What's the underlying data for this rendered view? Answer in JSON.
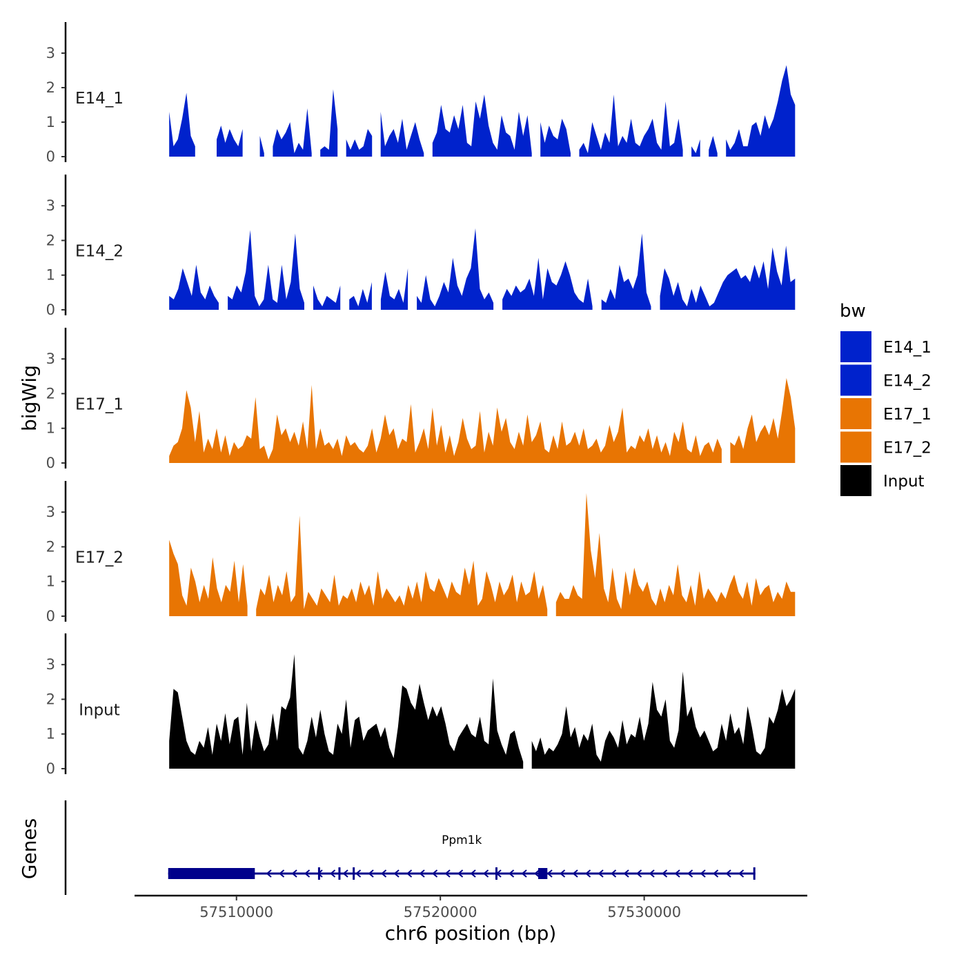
{
  "chart_data": {
    "type": "area",
    "title": "",
    "chromosome": "chr6",
    "xlabel": "chr6 position (bp)",
    "ylabel": "bigWig",
    "genes_panel_label": "Genes",
    "xlim": [
      57505000,
      57538000
    ],
    "x_ticks": [
      57510000,
      57520000,
      57530000
    ],
    "x_tick_labels": [
      "57510000",
      "57520000",
      "57530000"
    ],
    "ylim": [
      0,
      3.8
    ],
    "y_ticks": [
      0,
      1,
      2,
      3
    ],
    "y_tick_labels": [
      "0",
      "1",
      "2",
      "3"
    ],
    "x_start": 57506700,
    "x_end": 57537400,
    "legend": {
      "title": "bw",
      "placement": "right",
      "entries": [
        {
          "label": "E14_1",
          "color": "#0022cc"
        },
        {
          "label": "E14_2",
          "color": "#0022cc"
        },
        {
          "label": "E17_1",
          "color": "#e87503"
        },
        {
          "label": "E17_2",
          "color": "#e87503"
        },
        {
          "label": "Input",
          "color": "#000000"
        }
      ]
    },
    "series": [
      {
        "name": "E14_1",
        "color": "#0022cc",
        "values": [
          1.3,
          0.3,
          0.5,
          1.1,
          1.85,
          0.6,
          0.3,
          null,
          0.15,
          null,
          null,
          0.5,
          0.9,
          0.4,
          0.8,
          0.5,
          0.3,
          0.8,
          null,
          null,
          null,
          0.6,
          0.1,
          null,
          0.3,
          0.8,
          0.5,
          0.7,
          1.0,
          0.1,
          0.4,
          0.2,
          1.4,
          0.1,
          null,
          0.2,
          0.3,
          0.2,
          1.95,
          0.8,
          null,
          0.5,
          0.2,
          0.5,
          0.2,
          0.3,
          0.8,
          0.6,
          null,
          1.3,
          0.3,
          0.6,
          0.8,
          0.4,
          1.1,
          0.2,
          0.6,
          1.0,
          0.5,
          0.1,
          null,
          0.4,
          0.7,
          1.5,
          0.8,
          0.7,
          1.2,
          0.8,
          1.5,
          0.4,
          0.3,
          1.6,
          1.1,
          1.8,
          0.9,
          0.4,
          0.2,
          1.2,
          0.7,
          0.6,
          0.2,
          1.3,
          0.6,
          1.2,
          0.1,
          null,
          1.0,
          0.4,
          0.9,
          0.6,
          0.5,
          1.1,
          0.8,
          0.1,
          null,
          0.2,
          0.4,
          0.1,
          1.0,
          0.6,
          0.2,
          0.7,
          0.4,
          1.8,
          0.3,
          0.6,
          0.4,
          1.1,
          0.4,
          0.3,
          0.6,
          0.8,
          1.1,
          0.4,
          0.2,
          1.6,
          0.3,
          0.4,
          1.1,
          0.2,
          null,
          0.3,
          0.1,
          0.5,
          null,
          0.2,
          0.6,
          0.1,
          null,
          0.5,
          0.2,
          0.4,
          0.8,
          0.3,
          0.3,
          0.9,
          1.0,
          0.6,
          1.2,
          0.8,
          1.1,
          1.6,
          2.2,
          2.65,
          1.8,
          1.5
        ]
      },
      {
        "name": "E14_2",
        "color": "#0022cc",
        "values": [
          0.4,
          0.3,
          0.6,
          1.2,
          0.8,
          0.4,
          1.3,
          0.5,
          0.3,
          0.7,
          0.4,
          0.2,
          null,
          0.4,
          0.3,
          0.7,
          0.5,
          1.1,
          2.3,
          0.4,
          0.1,
          0.3,
          1.3,
          0.3,
          0.2,
          1.3,
          0.3,
          0.8,
          2.2,
          0.6,
          0.2,
          null,
          0.7,
          0.3,
          0.1,
          0.4,
          0.3,
          0.2,
          0.7,
          null,
          0.3,
          0.4,
          0.1,
          0.6,
          0.2,
          0.8,
          null,
          0.3,
          1.1,
          0.4,
          0.3,
          0.6,
          0.2,
          1.2,
          null,
          0.4,
          0.2,
          1.0,
          0.3,
          0.1,
          0.4,
          0.8,
          0.5,
          1.5,
          0.7,
          0.4,
          0.9,
          1.2,
          2.35,
          0.6,
          0.3,
          0.5,
          0.2,
          null,
          0.3,
          0.6,
          0.4,
          0.7,
          0.5,
          0.6,
          0.9,
          0.4,
          1.5,
          0.3,
          1.2,
          0.8,
          0.7,
          1.0,
          1.4,
          1.0,
          0.5,
          0.3,
          0.2,
          0.9,
          0.1,
          null,
          0.3,
          0.2,
          0.6,
          0.3,
          1.3,
          0.8,
          0.9,
          0.6,
          1.0,
          2.2,
          0.5,
          0.1,
          null,
          0.4,
          1.2,
          0.9,
          0.4,
          0.8,
          0.3,
          0.1,
          0.6,
          0.2,
          0.7,
          0.4,
          0.1,
          0.2,
          0.5,
          0.8,
          1.0,
          1.1,
          1.2,
          0.9,
          1.0,
          0.8,
          1.3,
          0.9,
          1.4,
          0.6,
          1.8,
          1.1,
          0.7,
          1.85,
          0.8,
          0.9
        ]
      },
      {
        "name": "E17_1",
        "color": "#e87503",
        "values": [
          0.2,
          0.5,
          0.6,
          1.0,
          2.1,
          1.6,
          0.6,
          1.5,
          0.3,
          0.7,
          0.4,
          1.0,
          0.3,
          0.8,
          0.2,
          0.6,
          0.4,
          0.5,
          0.8,
          0.7,
          1.9,
          0.4,
          0.5,
          0.1,
          0.4,
          1.4,
          0.8,
          1.0,
          0.6,
          0.9,
          0.5,
          1.2,
          0.4,
          2.25,
          0.4,
          1.0,
          0.5,
          0.6,
          0.4,
          0.7,
          0.2,
          0.8,
          0.5,
          0.6,
          0.4,
          0.3,
          0.5,
          1.0,
          0.3,
          0.7,
          1.4,
          0.8,
          1.0,
          0.4,
          0.7,
          0.6,
          1.7,
          0.3,
          0.6,
          1.0,
          0.4,
          1.6,
          0.5,
          1.1,
          0.3,
          0.8,
          0.2,
          0.6,
          1.3,
          0.7,
          0.4,
          0.5,
          1.5,
          0.3,
          0.9,
          0.5,
          1.6,
          0.9,
          1.3,
          0.6,
          0.4,
          0.9,
          0.5,
          1.4,
          0.6,
          0.8,
          1.2,
          0.4,
          0.3,
          0.8,
          0.4,
          1.2,
          0.5,
          0.6,
          0.9,
          0.5,
          1.0,
          0.4,
          0.5,
          0.7,
          0.3,
          0.5,
          1.1,
          0.6,
          0.9,
          1.6,
          0.3,
          0.5,
          0.4,
          0.8,
          0.6,
          1.0,
          0.4,
          0.8,
          0.3,
          0.6,
          0.2,
          0.9,
          0.6,
          1.2,
          0.4,
          0.3,
          0.8,
          0.2,
          0.5,
          0.6,
          0.3,
          0.7,
          0.4,
          null,
          0.6,
          0.5,
          0.8,
          0.4,
          1.0,
          1.4,
          0.6,
          0.9,
          1.1,
          0.8,
          1.3,
          0.7,
          1.5,
          2.45,
          1.9,
          1.0
        ]
      },
      {
        "name": "E17_2",
        "color": "#e87503",
        "values": [
          2.2,
          1.8,
          1.5,
          0.6,
          0.3,
          1.4,
          1.0,
          0.4,
          0.9,
          0.5,
          1.7,
          0.8,
          0.4,
          0.9,
          0.7,
          1.6,
          0.4,
          1.5,
          0.3,
          null,
          0.2,
          0.8,
          0.6,
          1.2,
          0.4,
          0.9,
          0.6,
          1.3,
          0.4,
          0.6,
          2.9,
          0.2,
          0.7,
          0.5,
          0.3,
          0.8,
          0.6,
          0.4,
          1.2,
          0.3,
          0.6,
          0.5,
          0.8,
          0.4,
          1.0,
          0.6,
          0.9,
          0.3,
          1.3,
          0.5,
          0.8,
          0.6,
          0.4,
          0.6,
          0.3,
          0.9,
          0.5,
          1.0,
          0.4,
          1.3,
          0.8,
          0.7,
          1.1,
          0.8,
          0.5,
          1.0,
          0.7,
          0.6,
          1.4,
          0.9,
          1.6,
          0.3,
          0.5,
          1.3,
          0.9,
          0.4,
          1.0,
          0.6,
          0.8,
          1.2,
          0.4,
          1.0,
          0.6,
          0.7,
          1.3,
          0.5,
          0.9,
          0.2,
          null,
          0.4,
          0.7,
          0.5,
          0.5,
          0.9,
          0.6,
          0.5,
          3.55,
          1.9,
          1.1,
          2.4,
          0.8,
          0.4,
          1.4,
          0.5,
          0.2,
          1.3,
          0.6,
          1.4,
          0.9,
          0.7,
          1.0,
          0.5,
          0.3,
          0.8,
          0.4,
          0.9,
          0.6,
          1.5,
          0.6,
          0.4,
          0.9,
          0.3,
          1.3,
          0.5,
          0.8,
          0.6,
          0.4,
          0.7,
          0.5,
          0.9,
          1.2,
          0.7,
          0.5,
          1.0,
          0.3,
          1.1,
          0.6,
          0.8,
          0.9,
          0.4,
          0.7,
          0.5,
          1.0,
          0.7,
          0.7
        ]
      },
      {
        "name": "Input",
        "color": "#000000",
        "values": [
          0.8,
          2.3,
          2.2,
          1.5,
          0.8,
          0.5,
          0.4,
          0.8,
          0.6,
          1.2,
          0.4,
          1.3,
          0.8,
          1.6,
          0.7,
          1.4,
          1.5,
          0.4,
          1.9,
          0.5,
          1.4,
          0.9,
          0.5,
          0.7,
          1.6,
          0.8,
          1.8,
          1.7,
          2.05,
          3.3,
          0.6,
          0.4,
          0.8,
          1.5,
          0.9,
          1.7,
          1.0,
          0.5,
          0.4,
          1.3,
          1.0,
          2.0,
          0.6,
          1.4,
          1.5,
          0.8,
          1.1,
          1.2,
          1.3,
          0.9,
          1.2,
          0.6,
          0.3,
          1.2,
          2.4,
          2.3,
          1.9,
          1.7,
          2.45,
          1.9,
          1.4,
          1.8,
          1.5,
          1.8,
          1.3,
          0.7,
          0.5,
          0.9,
          1.1,
          1.3,
          1.0,
          0.9,
          1.5,
          0.8,
          0.7,
          2.6,
          1.1,
          0.7,
          0.4,
          1.0,
          1.1,
          0.6,
          0.2,
          null,
          0.8,
          0.5,
          0.9,
          0.4,
          0.6,
          0.5,
          0.7,
          1.0,
          1.8,
          0.9,
          1.2,
          0.6,
          1.0,
          0.8,
          1.3,
          0.4,
          0.2,
          0.8,
          1.1,
          0.9,
          0.6,
          1.4,
          0.7,
          1.0,
          0.9,
          1.5,
          0.8,
          1.3,
          2.5,
          1.7,
          1.5,
          2.0,
          0.8,
          0.6,
          1.1,
          2.8,
          1.5,
          1.8,
          1.2,
          0.9,
          1.1,
          0.8,
          0.5,
          0.6,
          1.3,
          0.8,
          1.6,
          1.0,
          1.2,
          0.7,
          1.8,
          1.2,
          0.5,
          0.4,
          0.6,
          1.5,
          1.3,
          1.7,
          2.3,
          1.8,
          2.0,
          2.3
        ]
      }
    ],
    "gene": {
      "name": "Ppm1k",
      "strand": "-",
      "start": 57506650,
      "end": 57535450,
      "exons": [
        {
          "start": 57506650,
          "end": 57510900,
          "type": "utr-block"
        },
        {
          "start": 57514000,
          "end": 57514100,
          "type": "exon"
        },
        {
          "start": 57515000,
          "end": 57515100,
          "type": "exon"
        },
        {
          "start": 57515700,
          "end": 57515800,
          "type": "exon"
        },
        {
          "start": 57522700,
          "end": 57522800,
          "type": "exon"
        },
        {
          "start": 57524800,
          "end": 57525250,
          "type": "exon-block"
        },
        {
          "start": 57535350,
          "end": 57535450,
          "type": "exon"
        }
      ],
      "color": "#00008b"
    }
  }
}
